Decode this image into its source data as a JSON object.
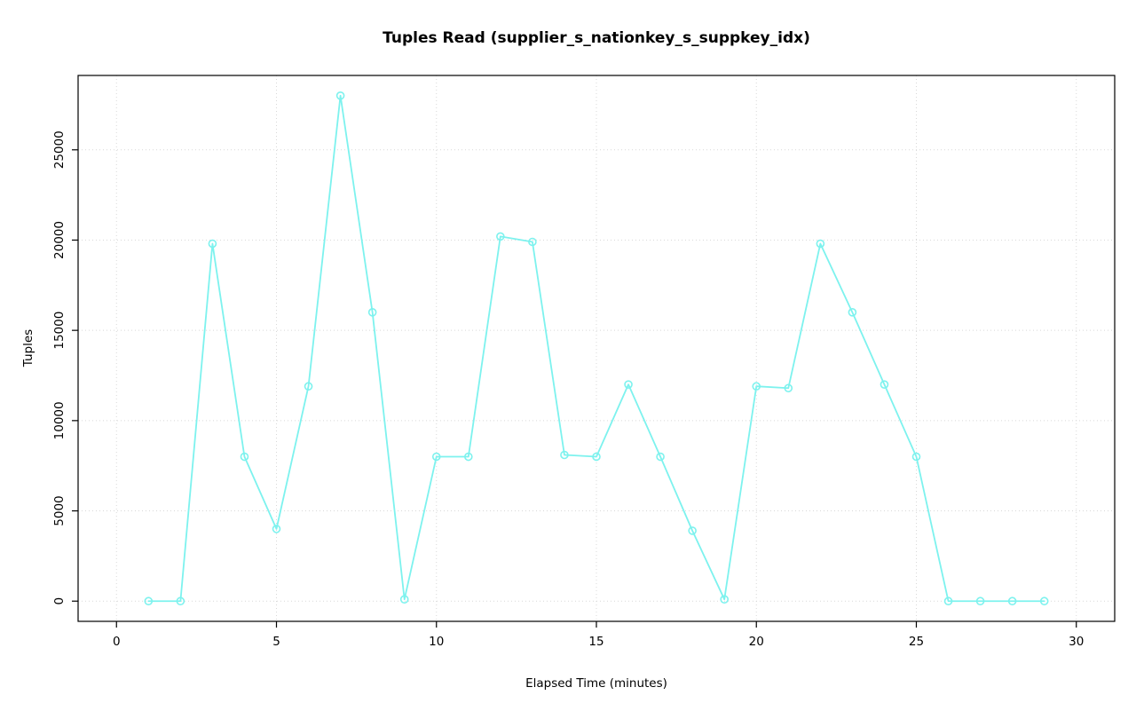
{
  "chart_data": {
    "type": "line",
    "title": "Tuples Read (supplier_s_nationkey_s_suppkey_idx)",
    "xlabel": "Elapsed Time (minutes)",
    "ylabel": "Tuples",
    "x": [
      1,
      2,
      3,
      4,
      5,
      6,
      7,
      8,
      9,
      10,
      11,
      12,
      13,
      14,
      15,
      16,
      17,
      18,
      19,
      20,
      21,
      22,
      23,
      24,
      25,
      26,
      27,
      28,
      29
    ],
    "y": [
      0,
      0,
      19800,
      8000,
      4000,
      11900,
      28000,
      16000,
      100,
      8000,
      8000,
      20200,
      19900,
      8100,
      8000,
      12000,
      8000,
      3900,
      100,
      11900,
      11800,
      19800,
      16000,
      12000,
      8000,
      0,
      0,
      0,
      0
    ],
    "xlim": [
      0,
      30
    ],
    "ylim": [
      0,
      28000
    ],
    "xticks": [
      0,
      5,
      10,
      15,
      20,
      25,
      30
    ],
    "yticks": [
      0,
      5000,
      10000,
      15000,
      20000,
      25000
    ],
    "grid": true,
    "legend": "none",
    "marker": "open-circle",
    "colors": {
      "line": "#7DF2EE",
      "grid": "#D8D8D8",
      "box": "#000000",
      "text": "#000000",
      "background": "#FFFFFF"
    }
  }
}
